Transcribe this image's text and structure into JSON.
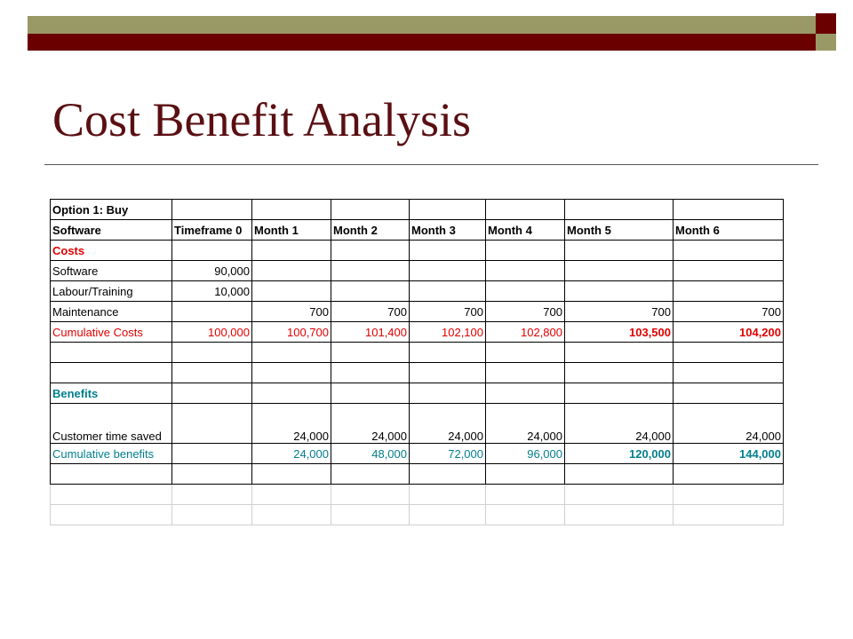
{
  "title": "Cost Benefit Analysis",
  "table": {
    "row_option": "Option 1: Buy",
    "row_header": [
      "Software",
      "Timeframe 0",
      "Month 1",
      "Month 2",
      "Month 3",
      "Month 4",
      "Month 5",
      "Month 6"
    ],
    "costs_label": "Costs",
    "software": [
      "Software",
      "90,000"
    ],
    "labour": [
      "Labour/Training",
      "10,000"
    ],
    "maintenance": [
      "Maintenance",
      "",
      "700",
      "700",
      "700",
      "700",
      "700",
      "700"
    ],
    "cumulative_costs": [
      "Cumulative Costs",
      "100,000",
      "100,700",
      "101,400",
      "102,100",
      "102,800",
      "103,500",
      "104,200"
    ],
    "benefits_label": "Benefits",
    "customer_time": [
      "Customer time saved",
      "",
      "24,000",
      "24,000",
      "24,000",
      "24,000",
      "24,000",
      "24,000"
    ],
    "cumulative_benefits": [
      "Cumulative benefits",
      "",
      "24,000",
      "48,000",
      "72,000",
      "96,000",
      "120,000",
      "144,000"
    ]
  },
  "colors": {
    "accent_bar": "#999966",
    "accent_dark": "#6b0000",
    "title": "#5a0f12",
    "cost_red": "#e00000",
    "benefit_teal": "#007f8c"
  }
}
